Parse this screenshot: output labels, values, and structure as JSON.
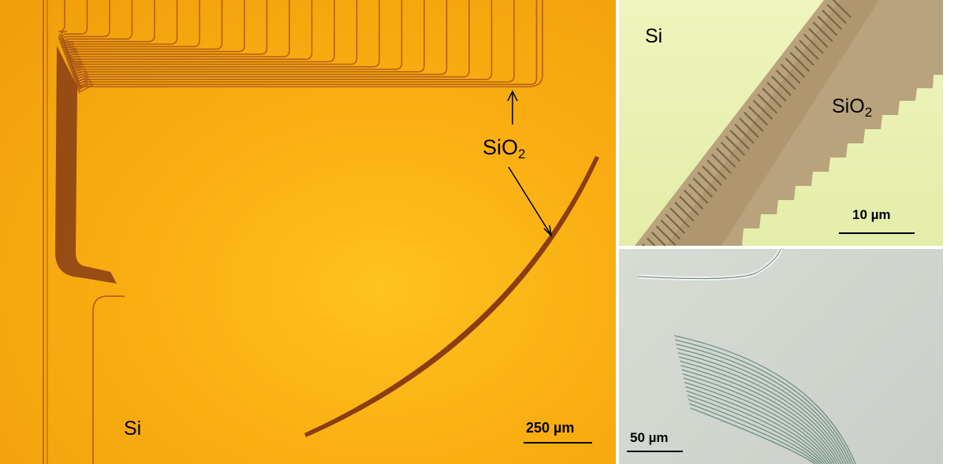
{
  "panels": {
    "main": {
      "label_si": "Si",
      "label_sio2_main": "SiO",
      "label_sio2_sub": "2",
      "scale_label": "250 µm"
    },
    "top_right": {
      "label_si": "Si",
      "label_sio2_main": "SiO",
      "label_sio2_sub": "2",
      "scale_label": "10 µm"
    },
    "bottom_right": {
      "scale_label": "50 µm"
    }
  },
  "colors": {
    "main_background": "#f9ae12",
    "trench": "#9a4a17",
    "top_right_background": "#e9f0b2",
    "bottom_right_background": "#d2d7cf"
  }
}
